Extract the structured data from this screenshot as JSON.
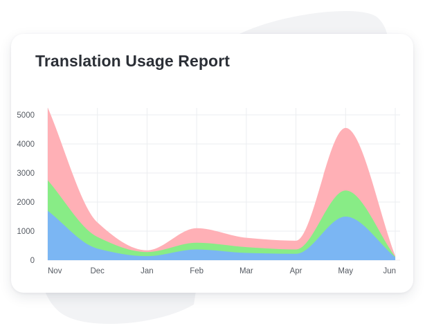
{
  "card": {
    "title": "Translation Usage Report"
  },
  "chart_data": {
    "type": "area",
    "stacked": true,
    "smooth": true,
    "title": "Translation Usage Report",
    "xlabel": "",
    "ylabel": "",
    "categories": [
      "Nov",
      "Dec",
      "Jan",
      "Feb",
      "Mar",
      "Apr",
      "May",
      "Jun"
    ],
    "ylim": [
      0,
      5000
    ],
    "yticks": [
      0,
      1000,
      2000,
      3000,
      4000,
      5000
    ],
    "grid": true,
    "legend": "none",
    "series": [
      {
        "values": [
          1700,
          400,
          140,
          370,
          250,
          220,
          1500,
          100
        ],
        "color": "#7bb6f3"
      },
      {
        "values": [
          1050,
          400,
          140,
          230,
          200,
          150,
          900,
          20
        ],
        "color": "#88ec86"
      },
      {
        "values": [
          2500,
          500,
          60,
          500,
          320,
          300,
          2150,
          30
        ],
        "color": "#ffb0b6"
      }
    ]
  }
}
